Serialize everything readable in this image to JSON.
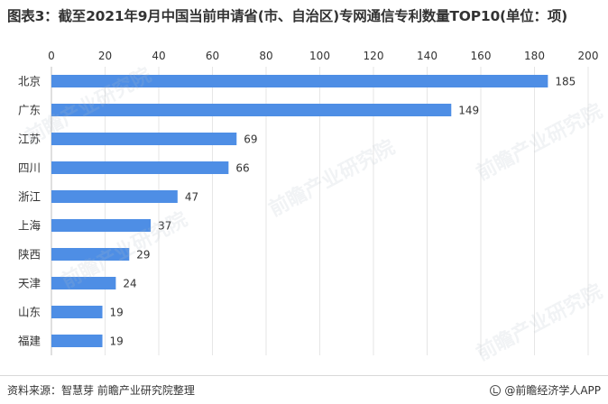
{
  "title": "图表3：截至2021年9月中国当前申请省(市、自治区)专网通信专利数量TOP10(单位：项)",
  "source": "资料来源：智慧芽 前瞻产业研究院整理",
  "brand": "@前瞻经济学人APP",
  "watermark_text": "前瞻产业研究院",
  "colors": {
    "bar": "#4e8ee5",
    "grid": "#e6e6e6",
    "text": "#333333"
  },
  "chart_data": {
    "type": "bar",
    "orientation": "horizontal",
    "categories": [
      "北京",
      "广东",
      "江苏",
      "四川",
      "浙江",
      "上海",
      "陕西",
      "天津",
      "山东",
      "福建"
    ],
    "values": [
      185,
      149,
      69,
      66,
      47,
      37,
      29,
      24,
      19,
      19
    ],
    "xlim": [
      0,
      200
    ],
    "xticks": [
      0,
      20,
      40,
      60,
      80,
      100,
      120,
      140,
      160,
      180,
      200
    ],
    "x_axis_position": "top",
    "grid": true,
    "data_labels": true
  }
}
